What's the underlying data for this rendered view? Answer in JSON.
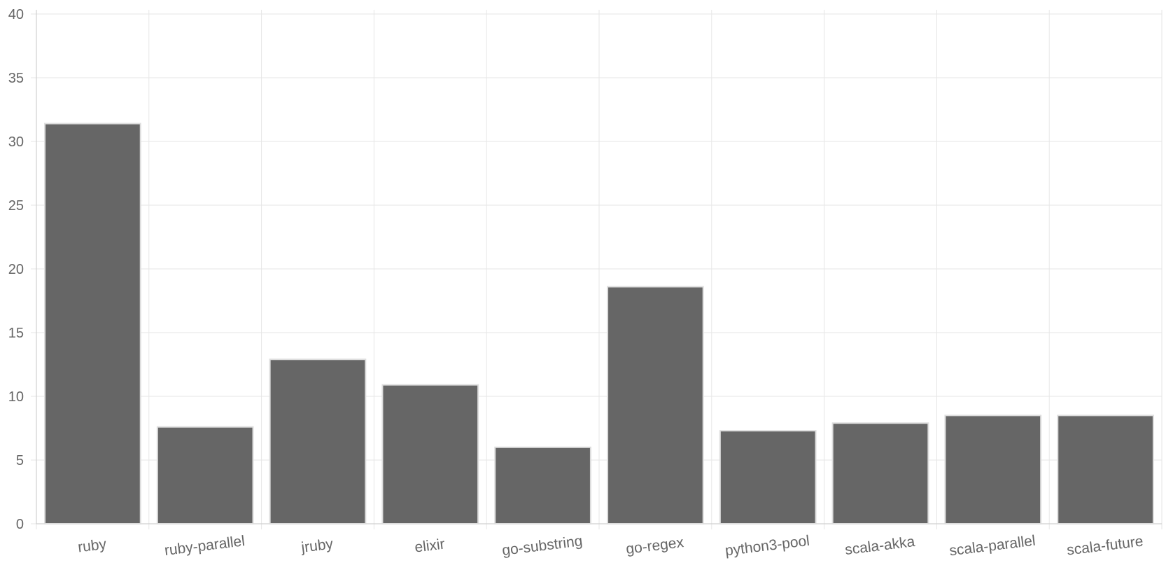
{
  "chart_data": {
    "type": "bar",
    "title": "",
    "xlabel": "",
    "ylabel": "",
    "categories": [
      "ruby",
      "ruby-parallel",
      "jruby",
      "elixir",
      "go-substring",
      "go-regex",
      "python3-pool",
      "scala-akka",
      "scala-parallel",
      "scala-future"
    ],
    "values": [
      31.4,
      7.6,
      12.9,
      10.9,
      6.0,
      18.6,
      7.3,
      7.9,
      8.5,
      8.5
    ],
    "ylim": [
      0,
      40
    ],
    "yticks": [
      "0",
      "5",
      "10",
      "15",
      "20",
      "25",
      "30",
      "35",
      "40"
    ],
    "grid": true,
    "legend": "none",
    "colors": {
      "bar": "#666666",
      "bar_border": "#dddddd",
      "grid": "#e6e6e6",
      "text": "#666666"
    }
  }
}
